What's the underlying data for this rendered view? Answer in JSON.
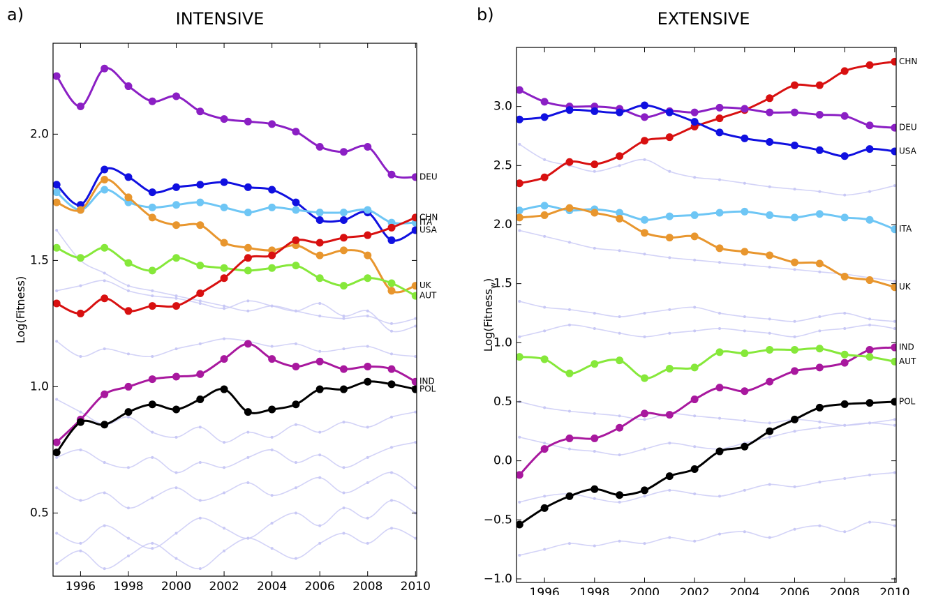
{
  "chart_data": [
    {
      "type": "line",
      "panel": "a)",
      "title": "INTENSIVE",
      "ylabel": [
        "Log(Fitness)"
      ],
      "x": [
        1995,
        1996,
        1997,
        1998,
        1999,
        2000,
        2001,
        2002,
        2003,
        2004,
        2005,
        2006,
        2007,
        2008,
        2009,
        2010
      ],
      "xlim": [
        1994.85,
        2010.05
      ],
      "xticks": [
        1996,
        1998,
        2000,
        2002,
        2004,
        2006,
        2008,
        2010
      ],
      "ylim": [
        0.25,
        2.36
      ],
      "yticks": [
        0.5,
        {
          "value": 1,
          "label": "1.0"
        },
        1.5,
        {
          "value": 2,
          "label": "2.0"
        }
      ],
      "series": [
        {
          "color": "#c8c8f5",
          "values": [
            1.62,
            1.5,
            1.45,
            1.4,
            1.38,
            1.36,
            1.34,
            1.32,
            1.3,
            1.32,
            1.3,
            1.28,
            1.27,
            1.28,
            1.25,
            1.27
          ]
        },
        {
          "color": "#c8c8f5",
          "values": [
            1.38,
            1.4,
            1.42,
            1.38,
            1.36,
            1.35,
            1.33,
            1.31,
            1.34,
            1.32,
            1.3,
            1.33,
            1.28,
            1.3,
            1.22,
            1.24
          ]
        },
        {
          "color": "#c8c8f5",
          "values": [
            1.18,
            1.12,
            1.15,
            1.13,
            1.12,
            1.15,
            1.17,
            1.19,
            1.18,
            1.16,
            1.17,
            1.14,
            1.15,
            1.16,
            1.13,
            1.12
          ]
        },
        {
          "color": "#c8c8f5",
          "values": [
            0.95,
            0.9,
            0.85,
            0.88,
            0.82,
            0.8,
            0.84,
            0.78,
            0.82,
            0.8,
            0.85,
            0.82,
            0.86,
            0.84,
            0.88,
            0.9
          ]
        },
        {
          "color": "#c8c8f5",
          "values": [
            0.72,
            0.75,
            0.7,
            0.68,
            0.72,
            0.66,
            0.7,
            0.68,
            0.72,
            0.75,
            0.7,
            0.73,
            0.68,
            0.72,
            0.76,
            0.78
          ]
        },
        {
          "color": "#c8c8f5",
          "values": [
            0.6,
            0.55,
            0.58,
            0.52,
            0.56,
            0.6,
            0.55,
            0.58,
            0.62,
            0.57,
            0.6,
            0.64,
            0.58,
            0.62,
            0.66,
            0.6
          ]
        },
        {
          "color": "#c8c8f5",
          "values": [
            0.42,
            0.38,
            0.45,
            0.4,
            0.36,
            0.42,
            0.48,
            0.44,
            0.4,
            0.46,
            0.5,
            0.45,
            0.52,
            0.48,
            0.55,
            0.5
          ]
        },
        {
          "color": "#c8c8f5",
          "values": [
            0.3,
            0.35,
            0.28,
            0.33,
            0.38,
            0.32,
            0.28,
            0.35,
            0.4,
            0.36,
            0.32,
            0.38,
            0.42,
            0.38,
            0.44,
            0.4
          ]
        },
        {
          "name": "DEU",
          "color": "#8b1fc4",
          "values": [
            2.23,
            2.11,
            2.26,
            2.19,
            2.13,
            2.15,
            2.09,
            2.06,
            2.05,
            2.04,
            2.01,
            1.95,
            1.93,
            1.95,
            1.84,
            1.83
          ]
        },
        {
          "name": "USA",
          "color": "#1010e0",
          "values": [
            1.8,
            1.72,
            1.86,
            1.83,
            1.77,
            1.79,
            1.8,
            1.81,
            1.79,
            1.78,
            1.73,
            1.66,
            1.66,
            1.69,
            1.58,
            1.62
          ]
        },
        {
          "name": "ITA",
          "color": "#6ec6f5",
          "values": [
            1.77,
            1.7,
            1.78,
            1.73,
            1.71,
            1.72,
            1.73,
            1.71,
            1.69,
            1.71,
            1.7,
            1.69,
            1.69,
            1.7,
            1.65,
            1.65
          ]
        },
        {
          "name": "UK",
          "color": "#e8962e",
          "values": [
            1.73,
            1.7,
            1.82,
            1.75,
            1.67,
            1.64,
            1.64,
            1.57,
            1.55,
            1.54,
            1.56,
            1.52,
            1.54,
            1.52,
            1.38,
            1.4
          ]
        },
        {
          "name": "AUT",
          "color": "#86e83a",
          "values": [
            1.55,
            1.51,
            1.55,
            1.49,
            1.46,
            1.51,
            1.48,
            1.47,
            1.46,
            1.47,
            1.48,
            1.43,
            1.4,
            1.43,
            1.41,
            1.36
          ]
        },
        {
          "name": "CHN",
          "color": "#d81010",
          "values": [
            1.33,
            1.29,
            1.35,
            1.3,
            1.32,
            1.32,
            1.37,
            1.43,
            1.51,
            1.52,
            1.58,
            1.57,
            1.59,
            1.6,
            1.63,
            1.67
          ]
        },
        {
          "name": "IND",
          "color": "#a8189e",
          "values": [
            0.78,
            0.87,
            0.97,
            1.0,
            1.03,
            1.04,
            1.05,
            1.11,
            1.17,
            1.11,
            1.08,
            1.1,
            1.07,
            1.08,
            1.07,
            1.02
          ]
        },
        {
          "name": "POL",
          "color": "#000000",
          "values": [
            0.74,
            0.86,
            0.85,
            0.9,
            0.93,
            0.91,
            0.95,
            0.99,
            0.9,
            0.91,
            0.93,
            0.99,
            0.99,
            1.02,
            1.01,
            0.99
          ]
        }
      ]
    },
    {
      "type": "line",
      "panel": "b)",
      "title": "EXTENSIVE",
      "ylabel": [
        "Log(Fitness",
        "w",
        ")"
      ],
      "x": [
        1995,
        1996,
        1997,
        1998,
        1999,
        2000,
        2001,
        2002,
        2003,
        2004,
        2005,
        2006,
        2007,
        2008,
        2009,
        2010
      ],
      "xlim": [
        1994.88,
        2010.06
      ],
      "xticks": [
        1996,
        1998,
        2000,
        2002,
        2004,
        2006,
        2008,
        2010
      ],
      "ylim": [
        -1.03,
        3.5
      ],
      "yticks": [
        {
          "value": -1,
          "label": "−1.0"
        },
        {
          "value": -0.5,
          "label": "−0.5"
        },
        {
          "value": 0,
          "label": "0.0"
        },
        0.5,
        {
          "value": 1,
          "label": "1.0"
        },
        1.5,
        {
          "value": 2,
          "label": "2.0"
        },
        2.5,
        {
          "value": 3,
          "label": "3.0"
        }
      ],
      "series": [
        {
          "color": "#c8c8f5",
          "values": [
            2.68,
            2.55,
            2.5,
            2.45,
            2.5,
            2.55,
            2.45,
            2.4,
            2.38,
            2.35,
            2.32,
            2.3,
            2.28,
            2.25,
            2.28,
            2.33
          ]
        },
        {
          "color": "#c8c8f5",
          "values": [
            1.95,
            1.9,
            1.85,
            1.8,
            1.78,
            1.75,
            1.72,
            1.7,
            1.68,
            1.66,
            1.64,
            1.62,
            1.6,
            1.58,
            1.55,
            1.52
          ]
        },
        {
          "color": "#c8c8f5",
          "values": [
            1.35,
            1.3,
            1.28,
            1.25,
            1.22,
            1.25,
            1.28,
            1.3,
            1.25,
            1.22,
            1.2,
            1.18,
            1.22,
            1.25,
            1.2,
            1.18
          ]
        },
        {
          "color": "#c8c8f5",
          "values": [
            1.05,
            1.1,
            1.15,
            1.12,
            1.08,
            1.05,
            1.08,
            1.1,
            1.12,
            1.1,
            1.08,
            1.05,
            1.1,
            1.12,
            1.15,
            1.12
          ]
        },
        {
          "color": "#c8c8f5",
          "values": [
            0.5,
            0.45,
            0.42,
            0.4,
            0.38,
            0.35,
            0.4,
            0.38,
            0.36,
            0.34,
            0.32,
            0.35,
            0.33,
            0.3,
            0.32,
            0.35
          ]
        },
        {
          "color": "#c8c8f5",
          "values": [
            0.2,
            0.15,
            0.1,
            0.08,
            0.05,
            0.1,
            0.15,
            0.12,
            0.1,
            0.15,
            0.2,
            0.25,
            0.28,
            0.3,
            0.32,
            0.3
          ]
        },
        {
          "color": "#c8c8f5",
          "values": [
            -0.35,
            -0.3,
            -0.28,
            -0.32,
            -0.35,
            -0.3,
            -0.25,
            -0.28,
            -0.3,
            -0.25,
            -0.2,
            -0.22,
            -0.18,
            -0.15,
            -0.12,
            -0.1
          ]
        },
        {
          "color": "#c8c8f5",
          "values": [
            -0.8,
            -0.75,
            -0.7,
            -0.72,
            -0.68,
            -0.7,
            -0.65,
            -0.68,
            -0.62,
            -0.6,
            -0.65,
            -0.58,
            -0.55,
            -0.6,
            -0.52,
            -0.55
          ]
        },
        {
          "name": "CHN",
          "color": "#d81010",
          "values": [
            2.35,
            2.4,
            2.53,
            2.51,
            2.58,
            2.71,
            2.74,
            2.83,
            2.9,
            2.97,
            3.07,
            3.18,
            3.18,
            3.3,
            3.35,
            3.38
          ]
        },
        {
          "name": "DEU",
          "color": "#8b1fc4",
          "values": [
            3.14,
            3.04,
            3.0,
            3.0,
            2.98,
            2.91,
            2.96,
            2.95,
            2.99,
            2.98,
            2.95,
            2.95,
            2.93,
            2.92,
            2.84,
            2.82
          ]
        },
        {
          "name": "USA",
          "color": "#1010e0",
          "values": [
            2.89,
            2.91,
            2.97,
            2.96,
            2.95,
            3.01,
            2.95,
            2.87,
            2.78,
            2.73,
            2.7,
            2.67,
            2.63,
            2.58,
            2.64,
            2.62
          ]
        },
        {
          "name": "ITA",
          "color": "#6ec6f5",
          "values": [
            2.12,
            2.16,
            2.12,
            2.13,
            2.1,
            2.04,
            2.07,
            2.08,
            2.1,
            2.11,
            2.08,
            2.06,
            2.09,
            2.06,
            2.04,
            1.96
          ]
        },
        {
          "name": "UK",
          "color": "#e8962e",
          "values": [
            2.06,
            2.08,
            2.14,
            2.1,
            2.05,
            1.93,
            1.89,
            1.9,
            1.8,
            1.77,
            1.74,
            1.68,
            1.67,
            1.56,
            1.53,
            1.47
          ]
        },
        {
          "name": "IND",
          "color": "#a8189e",
          "values": [
            -0.12,
            0.1,
            0.19,
            0.19,
            0.28,
            0.4,
            0.39,
            0.52,
            0.62,
            0.59,
            0.67,
            0.76,
            0.79,
            0.83,
            0.94,
            0.96
          ]
        },
        {
          "name": "AUT",
          "color": "#86e83a",
          "values": [
            0.88,
            0.86,
            0.74,
            0.82,
            0.85,
            0.7,
            0.78,
            0.79,
            0.92,
            0.91,
            0.94,
            0.94,
            0.95,
            0.9,
            0.88,
            0.84
          ]
        },
        {
          "name": "POL",
          "color": "#000000",
          "values": [
            -0.54,
            -0.4,
            -0.3,
            -0.24,
            -0.29,
            -0.25,
            -0.13,
            -0.07,
            0.08,
            0.12,
            0.25,
            0.35,
            0.45,
            0.48,
            0.49,
            0.5
          ]
        }
      ]
    }
  ]
}
